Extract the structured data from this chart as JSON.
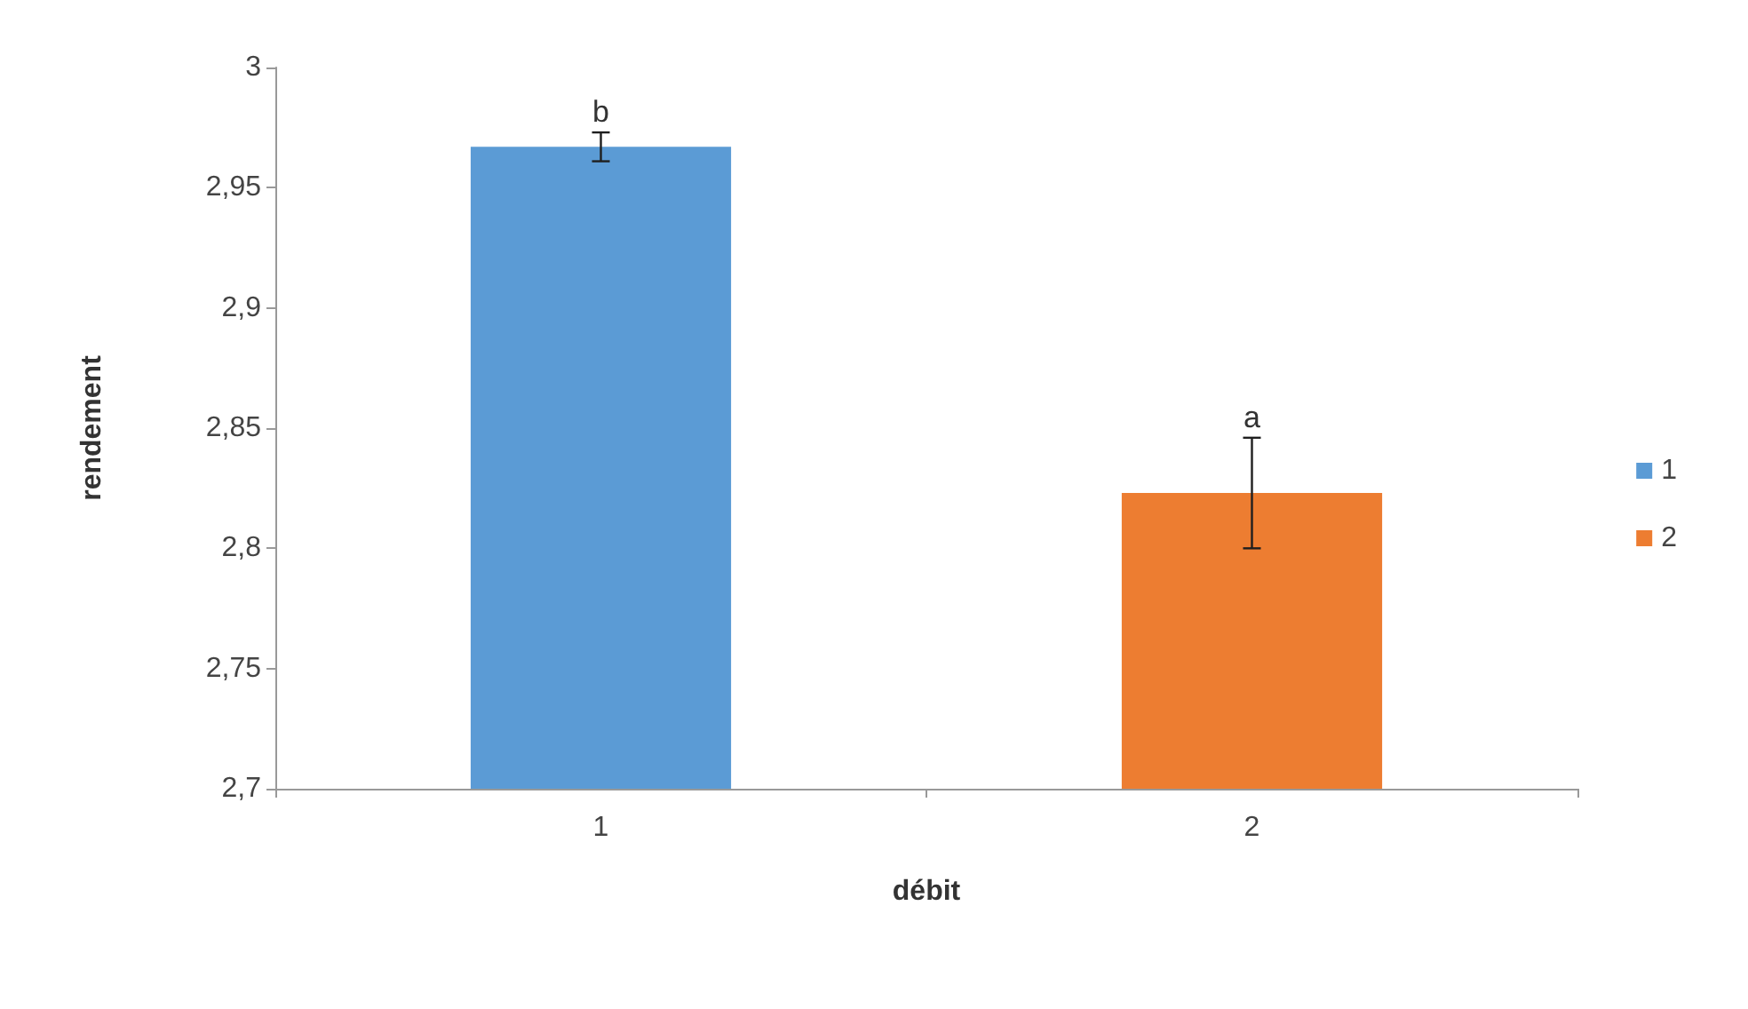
{
  "chart_data": {
    "type": "bar",
    "xlabel": "débit",
    "ylabel": "rendement",
    "categories": [
      "1",
      "2"
    ],
    "series": [
      {
        "name": "1",
        "color": "#5b9bd5",
        "values": [
          2.967,
          null
        ],
        "errors": [
          0.006,
          null
        ]
      },
      {
        "name": "2",
        "color": "#ed7d31",
        "values": [
          null,
          2.823
        ],
        "errors": [
          null,
          0.023
        ]
      }
    ],
    "ylim": [
      2.7,
      3
    ],
    "yticks": [
      {
        "value": 2.7,
        "label": "2,7"
      },
      {
        "value": 2.75,
        "label": "2,75"
      },
      {
        "value": 2.8,
        "label": "2,8"
      },
      {
        "value": 2.85,
        "label": "2,85"
      },
      {
        "value": 2.9,
        "label": "2,9"
      },
      {
        "value": 2.95,
        "label": "2,95"
      },
      {
        "value": 3,
        "label": "3"
      }
    ],
    "annotations": [
      {
        "text": "b",
        "x": "1",
        "y": 2.973
      },
      {
        "text": "a",
        "x": "2",
        "y": 2.846
      }
    ],
    "grid": false,
    "legend": "right"
  }
}
